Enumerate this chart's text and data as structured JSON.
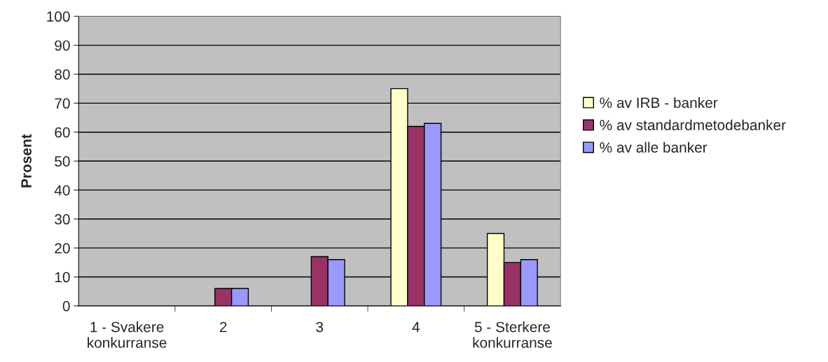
{
  "chart_data": {
    "type": "bar",
    "ylabel": "Prosent",
    "categories": [
      "1 - Svakere\nkonkurranse",
      "2",
      "3",
      "4",
      "5 - Sterkere\nkonkurranse"
    ],
    "series": [
      {
        "name": "% av IRB - banker",
        "color": "#ffffcc",
        "values": [
          0,
          0,
          0,
          75,
          25
        ]
      },
      {
        "name": "% av standardmetodebanker",
        "color": "#993366",
        "values": [
          0,
          6,
          17,
          62,
          15
        ]
      },
      {
        "name": "% av alle banker",
        "color": "#9999ff",
        "values": [
          0,
          6,
          16,
          63,
          16
        ]
      }
    ],
    "ylim": [
      0,
      100
    ],
    "yticks": [
      0,
      10,
      20,
      30,
      40,
      50,
      60,
      70,
      80,
      90,
      100
    ],
    "grid": "y",
    "legend": "right"
  }
}
